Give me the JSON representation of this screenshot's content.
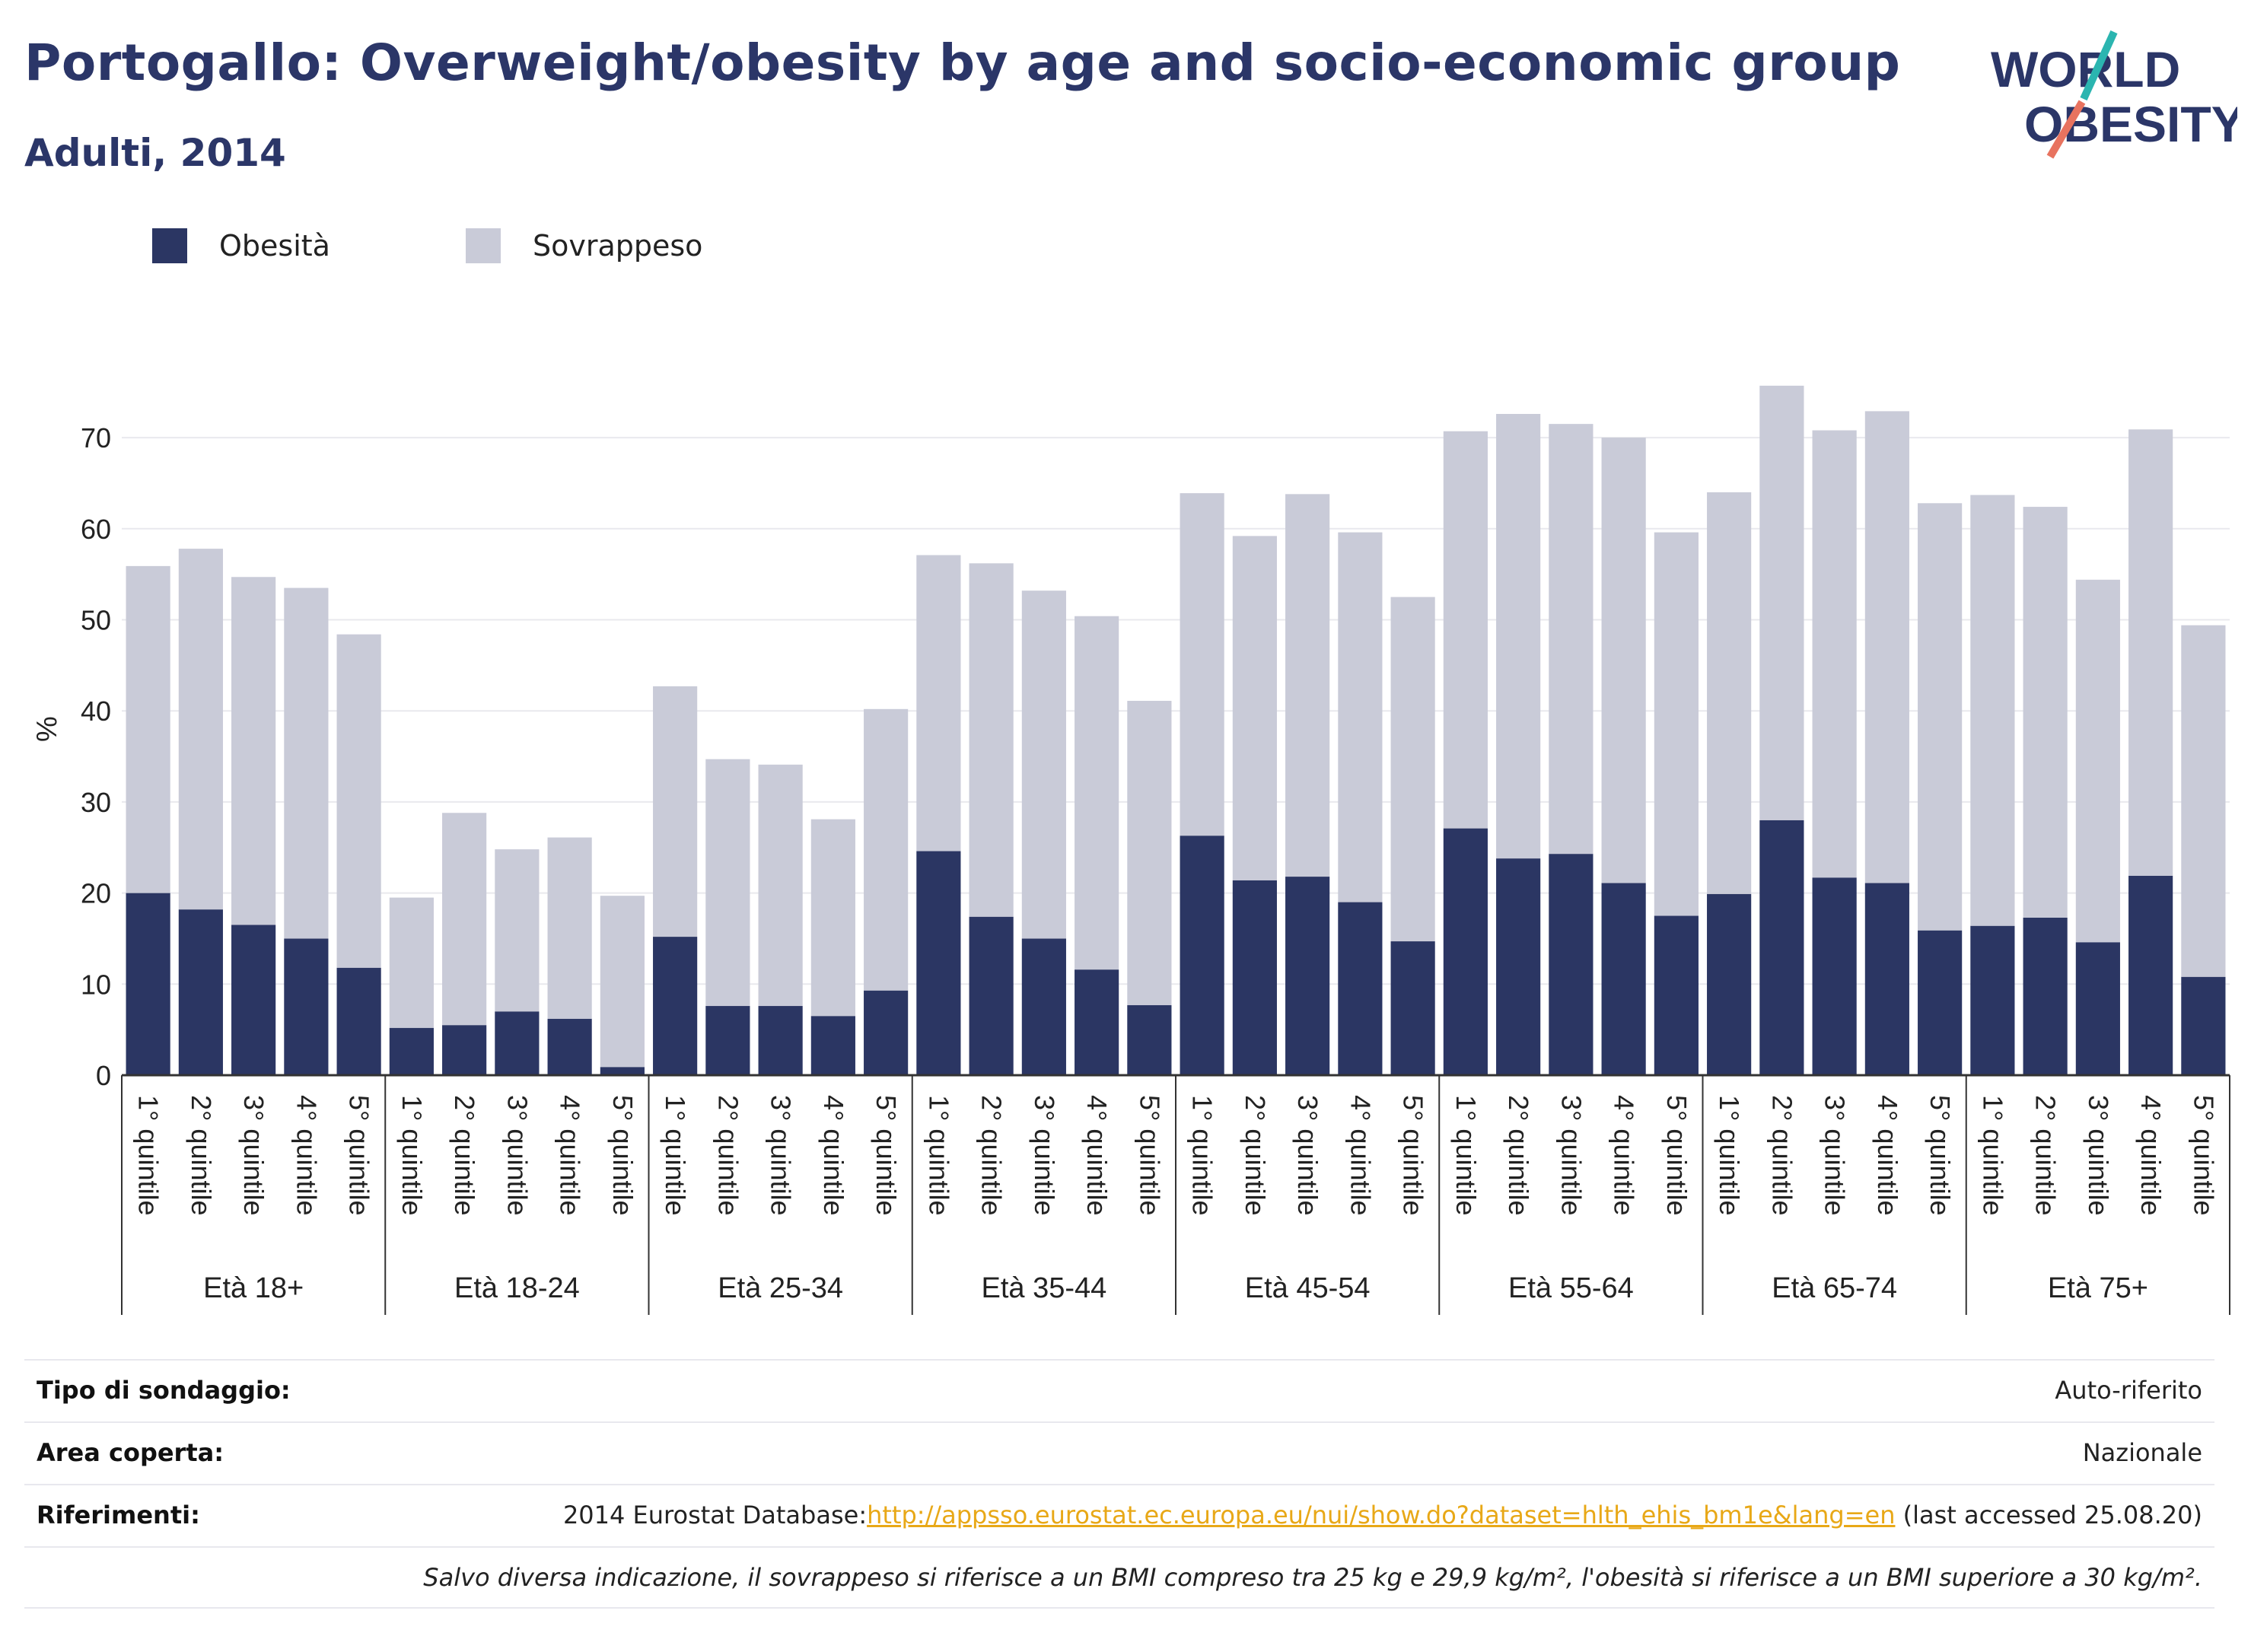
{
  "header": {
    "title": "Portogallo: Overweight/obesity by age and socio-economic group",
    "subtitle": "Adulti, 2014"
  },
  "logo": {
    "line1": "WORLD",
    "line2": "OBESITY"
  },
  "colors": {
    "obesity": "#2b3663",
    "overweight": "#c9cbd8",
    "title": "#2b3668",
    "link": "#e8a817"
  },
  "chart_data": {
    "type": "bar",
    "stacked": true,
    "ylabel": "%",
    "ylim": [
      0,
      76
    ],
    "yticks": [
      0,
      10,
      20,
      30,
      40,
      50,
      60,
      70
    ],
    "grid": true,
    "legend_position": "top-left",
    "groups": [
      "Età 18+",
      "Età 18-24",
      "Età 25-34",
      "Età 35-44",
      "Età 45-54",
      "Età 55-64",
      "Età 65-74",
      "Età 75+"
    ],
    "subcategories": [
      "1° quintile",
      "2° quintile",
      "3° quintile",
      "4° quintile",
      "5° quintile"
    ],
    "series": [
      {
        "name": "Obesità",
        "values": [
          [
            20.0,
            18.2,
            16.5,
            15.0,
            11.8
          ],
          [
            5.2,
            5.5,
            7.0,
            6.2,
            0.9
          ],
          [
            15.2,
            7.6,
            7.6,
            6.5,
            9.3
          ],
          [
            24.6,
            17.4,
            15.0,
            11.6,
            7.7
          ],
          [
            26.3,
            21.4,
            21.8,
            19.0,
            14.7
          ],
          [
            27.1,
            23.8,
            24.3,
            21.1,
            17.5
          ],
          [
            19.9,
            28.0,
            21.7,
            21.1,
            15.9
          ],
          [
            16.4,
            17.3,
            14.6,
            21.9,
            10.8
          ]
        ]
      },
      {
        "name": "Sovrappeso",
        "values": [
          [
            35.9,
            39.6,
            38.2,
            38.5,
            36.6
          ],
          [
            14.3,
            23.3,
            17.8,
            19.9,
            18.8
          ],
          [
            27.5,
            27.1,
            26.5,
            21.6,
            30.9
          ],
          [
            32.5,
            38.8,
            38.2,
            38.8,
            33.4
          ],
          [
            37.6,
            37.8,
            42.0,
            40.6,
            37.8
          ],
          [
            43.6,
            48.8,
            47.2,
            48.9,
            42.1
          ],
          [
            44.1,
            47.7,
            49.1,
            51.8,
            46.9
          ],
          [
            47.3,
            45.1,
            39.8,
            49.0,
            38.6
          ]
        ]
      }
    ]
  },
  "legend": {
    "obesity_label": "Obesità",
    "overweight_label": "Sovrappeso"
  },
  "info": {
    "survey_type_label": "Tipo di sondaggio:",
    "survey_type_value": "Auto-riferito",
    "area_label": "Area coperta:",
    "area_value": "Nazionale",
    "references_label": "Riferimenti:",
    "references_prefix": "2014 Eurostat Database:",
    "references_link": "http://appsso.eurostat.ec.europa.eu/nui/show.do?dataset=hlth_ehis_bm1e&lang=en",
    "references_suffix": " (last accessed 25.08.20)",
    "note": "Salvo diversa indicazione, il sovrappeso si riferisce a un BMI compreso tra 25 kg e 29,9 kg/m², l'obesità si riferisce a un BMI superiore a 30 kg/m²."
  }
}
